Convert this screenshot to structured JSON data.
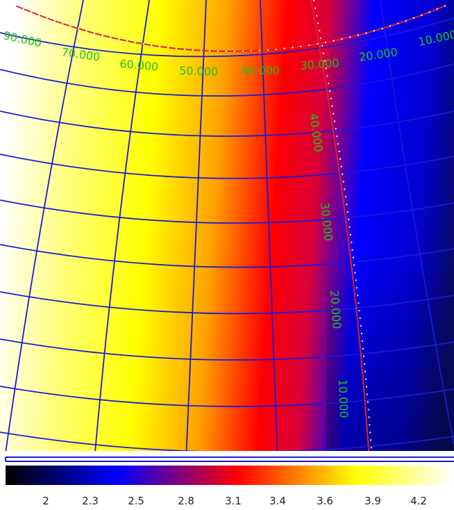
{
  "colors": {
    "grid_lines": "#1a1ad6",
    "grid_labels": "#22c01e",
    "boundary_line": "#e0202a",
    "tick_marks": "#ffffff",
    "frame": "#1a1ad6"
  },
  "colorbar": {
    "colormap": "heat",
    "stops": [
      "#000000",
      "#0000ff",
      "#ff0000",
      "#ffff00",
      "#ffffff"
    ],
    "tick_labels": [
      "2",
      "2.3",
      "2.5",
      "2.8",
      "3.1",
      "3.4",
      "3.6",
      "3.9",
      "4.2"
    ]
  },
  "grid_labels": {
    "horizontal": [
      "90.000",
      "70.000",
      "60.000",
      "50.000",
      "40.000",
      "30.000",
      "20.000",
      "10.000"
    ],
    "vertical": [
      "40.000",
      "30.000",
      "20.000",
      "10.000"
    ]
  }
}
